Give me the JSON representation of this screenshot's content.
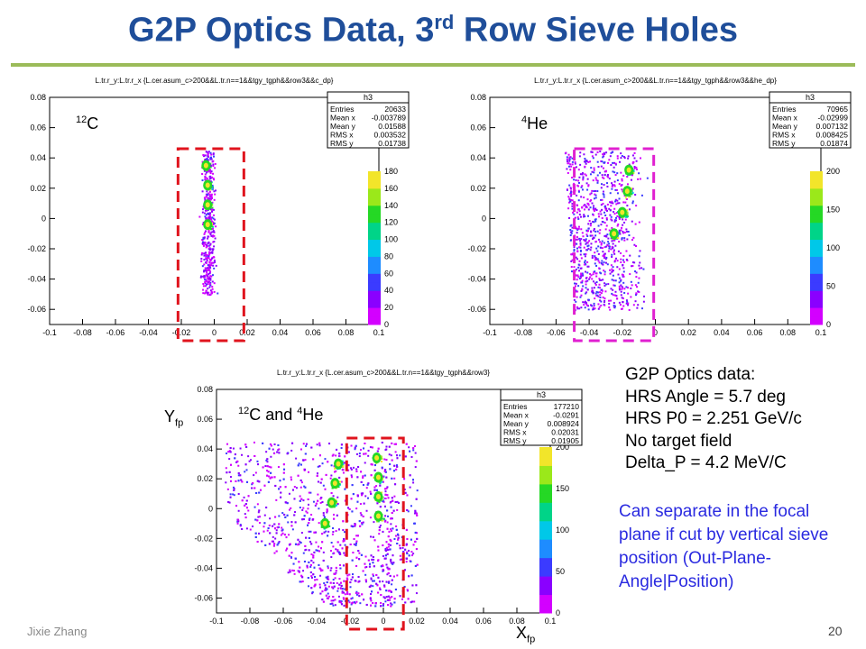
{
  "slide": {
    "title_main": "G2P Optics Data, 3",
    "title_sup": "rd",
    "title_tail": " Row Sieve Holes",
    "footer_author": "Jixie Zhang",
    "page_number": "20"
  },
  "info": {
    "lines": [
      "G2P Optics data:",
      "HRS Angle = 5.7 deg",
      "HRS P0 = 2.251 GeV/c",
      "No target field",
      "Delta_P = 4.2 MeV/C"
    ],
    "note": "Can separate in the focal plane if cut by vertical sieve position (Out-Plane-Angle|Position)"
  },
  "labels": {
    "c12_sup": "12",
    "c12": "C",
    "he4_sup": "4",
    "he4": "He",
    "both_sup1": "12",
    "both_mid": "C and ",
    "both_sup2": "4",
    "both_end": "He",
    "y_axis": "Y",
    "y_sub": "fp",
    "x_axis": "X",
    "x_sub": "fp"
  },
  "chart_data": [
    {
      "type": "heatmap",
      "title": "L.tr.r_y:L.tr.r_x {L.cer.asum_c>200&&L.tr.n==1&&tgy_tgph&&row3&&c_dp}",
      "xlim": [
        -0.1,
        0.1
      ],
      "ylim": [
        -0.07,
        0.08
      ],
      "xticks": [
        "-0.1",
        "-0.08",
        "-0.06",
        "-0.04",
        "-0.02",
        "0",
        "0.02",
        "0.04",
        "0.06",
        "0.08",
        "0.1"
      ],
      "yticks": [
        "0.08",
        "0.06",
        "0.04",
        "0.02",
        "0",
        "-0.02",
        "-0.04",
        "-0.06"
      ],
      "zticks": [
        "180",
        "160",
        "140",
        "120",
        "100",
        "80",
        "60",
        "40",
        "20",
        "0"
      ],
      "stats": {
        "name": "h3",
        "rows": [
          [
            "Entries",
            "20633"
          ],
          [
            "Mean x",
            "-0.003789"
          ],
          [
            "Mean y",
            "0.01588"
          ],
          [
            "RMS x",
            "0.003532"
          ],
          [
            "RMS y",
            "0.01738"
          ]
        ]
      },
      "cut_x": [
        -0.022,
        0.018
      ],
      "hotspots": [
        [
          -0.005,
          0.035
        ],
        [
          -0.004,
          0.022
        ],
        [
          -0.004,
          0.009
        ],
        [
          -0.004,
          -0.004
        ]
      ]
    },
    {
      "type": "heatmap",
      "title": "L.tr.r_y:L.tr.r_x {L.cer.asum_c>200&&L.tr.n==1&&tgy_tgph&&row3&&he_dp}",
      "xlim": [
        -0.1,
        0.1
      ],
      "ylim": [
        -0.07,
        0.08
      ],
      "xticks": [
        "-0.1",
        "-0.08",
        "-0.06",
        "-0.04",
        "-0.02",
        "0",
        "0.02",
        "0.04",
        "0.06",
        "0.08",
        "0.1"
      ],
      "yticks": [
        "0.08",
        "0.06",
        "0.04",
        "0.02",
        "0",
        "-0.02",
        "-0.04",
        "-0.06"
      ],
      "zticks": [
        "200",
        "150",
        "100",
        "50",
        "0"
      ],
      "stats": {
        "name": "h3",
        "rows": [
          [
            "Entries",
            "70965"
          ],
          [
            "Mean x",
            "-0.02999"
          ],
          [
            "Mean y",
            "0.007132"
          ],
          [
            "RMS x",
            "0.008425"
          ],
          [
            "RMS y",
            "0.01874"
          ]
        ]
      },
      "cut_x": [
        -0.049,
        -0.001
      ],
      "hotspots": [
        [
          -0.016,
          0.032
        ],
        [
          -0.017,
          0.018
        ],
        [
          -0.02,
          0.004
        ],
        [
          -0.025,
          -0.01
        ]
      ]
    },
    {
      "type": "heatmap",
      "title": "L.tr.r_y:L.tr.r_x {L.cer.asum_c>200&&L.tr.n==1&&tgy_tgph&&row3}",
      "xlim": [
        -0.1,
        0.1
      ],
      "ylim": [
        -0.07,
        0.08
      ],
      "xticks": [
        "-0.1",
        "-0.08",
        "-0.06",
        "-0.04",
        "-0.02",
        "0",
        "0.02",
        "0.04",
        "0.06",
        "0.08",
        "0.1"
      ],
      "yticks": [
        "0.08",
        "0.06",
        "0.04",
        "0.02",
        "0",
        "-0.02",
        "-0.04",
        "-0.06"
      ],
      "zticks": [
        "200",
        "150",
        "100",
        "50",
        "0"
      ],
      "stats": {
        "name": "h3",
        "rows": [
          [
            "Entries",
            "177210"
          ],
          [
            "Mean x",
            "-0.0291"
          ],
          [
            "Mean y",
            "0.008924"
          ],
          [
            "RMS x",
            "0.02031"
          ],
          [
            "RMS y",
            "0.01905"
          ]
        ]
      },
      "cut_x": [
        -0.022,
        0.012
      ],
      "hotspots": [
        [
          -0.027,
          0.03
        ],
        [
          -0.029,
          0.017
        ],
        [
          -0.031,
          0.004
        ],
        [
          -0.035,
          -0.01
        ],
        [
          -0.004,
          0.034
        ],
        [
          -0.003,
          0.021
        ],
        [
          -0.003,
          0.008
        ],
        [
          -0.003,
          -0.005
        ]
      ]
    }
  ]
}
